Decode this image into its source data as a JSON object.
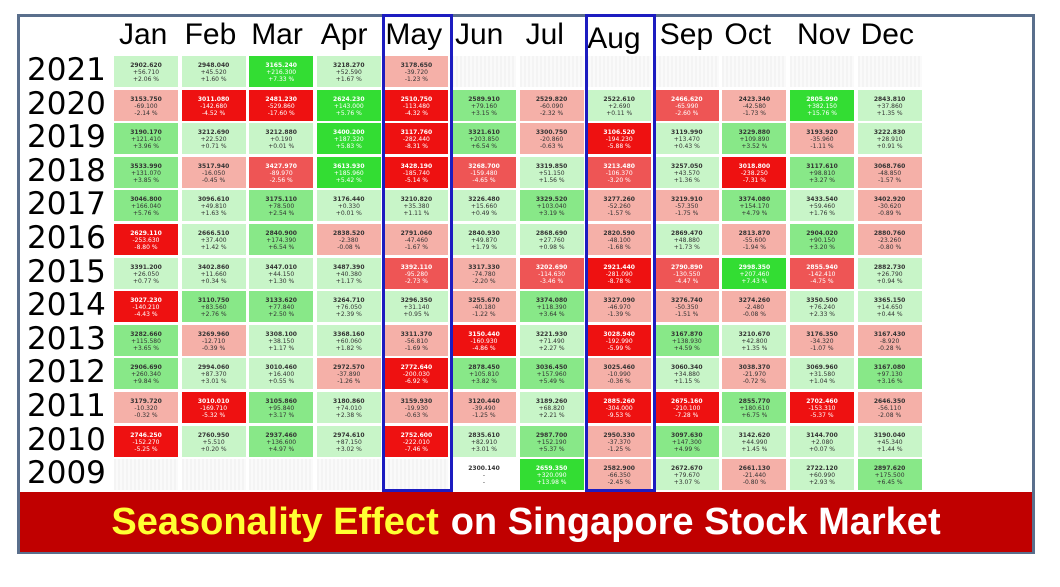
{
  "banner": {
    "highlight": "Seasonality Effect",
    "rest": "on Singapore Stock Market"
  },
  "colors": {
    "strong_up": "#33dd33",
    "up": "#88e888",
    "mild_up": "#c8f5c8",
    "mild_down": "#f5b0a8",
    "down": "#ee5555",
    "strong_down": "#ee1111",
    "highlight_box": "#1c1cc0",
    "banner_bg": "#c00000",
    "banner_accent": "#ffff33"
  },
  "chart_data": {
    "type": "heatmap",
    "title": "Seasonality Effect on Singapore Stock Market",
    "columns": [
      "Jan",
      "Feb",
      "Mar",
      "Apr",
      "May",
      "Jun",
      "Jul",
      "Aug",
      "Sep",
      "Oct",
      "Nov",
      "Dec"
    ],
    "rows": [
      "2021",
      "2020",
      "2019",
      "2018",
      "2017",
      "2016",
      "2015",
      "2014",
      "2013",
      "2012",
      "2011",
      "2010",
      "2009"
    ],
    "highlighted_columns": [
      "May",
      "Aug"
    ],
    "cells": [
      [
        {
          "v": "2902.620",
          "c": "+56.710",
          "p": "+2.06 %",
          "s": 1
        },
        {
          "v": "2948.040",
          "c": "+45.520",
          "p": "+1.60 %",
          "s": 1
        },
        {
          "v": "3165.240",
          "c": "+216.300",
          "p": "+7.33 %",
          "s": 3
        },
        {
          "v": "3218.270",
          "c": "+52.590",
          "p": "+1.67 %",
          "s": 1
        },
        {
          "v": "3178.650",
          "c": "-39.720",
          "p": "-1.23 %",
          "s": -1
        },
        null,
        null,
        null,
        null,
        null,
        null,
        null
      ],
      [
        {
          "v": "3153.750",
          "c": "-69.100",
          "p": "-2.14 %",
          "s": -1
        },
        {
          "v": "3011.080",
          "c": "-142.680",
          "p": "-4.52 %",
          "s": -3
        },
        {
          "v": "2481.230",
          "c": "-529.860",
          "p": "-17.60 %",
          "s": -3
        },
        {
          "v": "2624.230",
          "c": "+143.000",
          "p": "+5.76 %",
          "s": 3
        },
        {
          "v": "2510.750",
          "c": "-113.480",
          "p": "-4.32 %",
          "s": -3
        },
        {
          "v": "2589.910",
          "c": "+79.160",
          "p": "+3.15 %",
          "s": 2
        },
        {
          "v": "2529.820",
          "c": "-60.090",
          "p": "-2.32 %",
          "s": -1
        },
        {
          "v": "2522.610",
          "c": "+2.690",
          "p": "+0.11 %",
          "s": 1
        },
        {
          "v": "2466.620",
          "c": "-65.990",
          "p": "-2.60 %",
          "s": -2
        },
        {
          "v": "2423.340",
          "c": "-42.580",
          "p": "-1.73 %",
          "s": -1
        },
        {
          "v": "2805.990",
          "c": "+382.150",
          "p": "+15.76 %",
          "s": 3
        },
        {
          "v": "2843.810",
          "c": "+37.860",
          "p": "+1.35 %",
          "s": 1
        }
      ],
      [
        {
          "v": "3190.170",
          "c": "+121.410",
          "p": "+3.96 %",
          "s": 2
        },
        {
          "v": "3212.690",
          "c": "+22.520",
          "p": "+0.71 %",
          "s": 1
        },
        {
          "v": "3212.880",
          "c": "+0.190",
          "p": "+0.01 %",
          "s": 1
        },
        {
          "v": "3400.200",
          "c": "+187.320",
          "p": "+5.83 %",
          "s": 3
        },
        {
          "v": "3117.760",
          "c": "-282.440",
          "p": "-8.31 %",
          "s": -3
        },
        {
          "v": "3321.610",
          "c": "+203.850",
          "p": "+6.54 %",
          "s": 2
        },
        {
          "v": "3300.750",
          "c": "-20.860",
          "p": "-0.63 %",
          "s": -1
        },
        {
          "v": "3106.520",
          "c": "-194.230",
          "p": "-5.88 %",
          "s": -3
        },
        {
          "v": "3119.990",
          "c": "+13.470",
          "p": "+0.43 %",
          "s": 1
        },
        {
          "v": "3229.880",
          "c": "+109.890",
          "p": "+3.52 %",
          "s": 2
        },
        {
          "v": "3193.920",
          "c": "-35.960",
          "p": "-1.11 %",
          "s": -1
        },
        {
          "v": "3222.830",
          "c": "+28.910",
          "p": "+0.91 %",
          "s": 1
        }
      ],
      [
        {
          "v": "3533.990",
          "c": "+131.070",
          "p": "+3.85 %",
          "s": 2
        },
        {
          "v": "3517.940",
          "c": "-16.050",
          "p": "-0.45 %",
          "s": -1
        },
        {
          "v": "3427.970",
          "c": "-89.970",
          "p": "-2.56 %",
          "s": -2
        },
        {
          "v": "3613.930",
          "c": "+185.960",
          "p": "+5.42 %",
          "s": 3
        },
        {
          "v": "3428.190",
          "c": "-185.740",
          "p": "-5.14 %",
          "s": -3
        },
        {
          "v": "3268.700",
          "c": "-159.480",
          "p": "-4.65 %",
          "s": -2
        },
        {
          "v": "3319.850",
          "c": "+51.150",
          "p": "+1.56 %",
          "s": 1
        },
        {
          "v": "3213.480",
          "c": "-106.370",
          "p": "-3.20 %",
          "s": -2
        },
        {
          "v": "3257.050",
          "c": "+43.570",
          "p": "+1.36 %",
          "s": 1
        },
        {
          "v": "3018.800",
          "c": "-238.250",
          "p": "-7.31 %",
          "s": -3
        },
        {
          "v": "3117.610",
          "c": "+98.810",
          "p": "+3.27 %",
          "s": 2
        },
        {
          "v": "3068.760",
          "c": "-48.850",
          "p": "-1.57 %",
          "s": -1
        }
      ],
      [
        {
          "v": "3046.800",
          "c": "+166.040",
          "p": "+5.76 %",
          "s": 2
        },
        {
          "v": "3096.610",
          "c": "+49.810",
          "p": "+1.63 %",
          "s": 1
        },
        {
          "v": "3175.110",
          "c": "+78.500",
          "p": "+2.54 %",
          "s": 2
        },
        {
          "v": "3176.440",
          "c": "+0.330",
          "p": "+0.01 %",
          "s": 1
        },
        {
          "v": "3210.820",
          "c": "+35.380",
          "p": "+1.11 %",
          "s": 1
        },
        {
          "v": "3226.480",
          "c": "+15.660",
          "p": "+0.49 %",
          "s": 1
        },
        {
          "v": "3329.520",
          "c": "+103.040",
          "p": "+3.19 %",
          "s": 2
        },
        {
          "v": "3277.260",
          "c": "-52.260",
          "p": "-1.57 %",
          "s": -1
        },
        {
          "v": "3219.910",
          "c": "-57.350",
          "p": "-1.75 %",
          "s": -1
        },
        {
          "v": "3374.080",
          "c": "+154.170",
          "p": "+4.79 %",
          "s": 2
        },
        {
          "v": "3433.540",
          "c": "+59.460",
          "p": "+1.76 %",
          "s": 1
        },
        {
          "v": "3402.920",
          "c": "-30.620",
          "p": "-0.89 %",
          "s": -1
        }
      ],
      [
        {
          "v": "2629.110",
          "c": "-253.630",
          "p": "-8.80 %",
          "s": -3
        },
        {
          "v": "2666.510",
          "c": "+37.400",
          "p": "+1.42 %",
          "s": 1
        },
        {
          "v": "2840.900",
          "c": "+174.390",
          "p": "+6.54 %",
          "s": 2
        },
        {
          "v": "2838.520",
          "c": "-2.380",
          "p": "-0.08 %",
          "s": -1
        },
        {
          "v": "2791.060",
          "c": "-47.460",
          "p": "-1.67 %",
          "s": -1
        },
        {
          "v": "2840.930",
          "c": "+49.870",
          "p": "+1.79 %",
          "s": 1
        },
        {
          "v": "2868.690",
          "c": "+27.760",
          "p": "+0.98 %",
          "s": 1
        },
        {
          "v": "2820.590",
          "c": "-48.100",
          "p": "-1.68 %",
          "s": -1
        },
        {
          "v": "2869.470",
          "c": "+48.880",
          "p": "+1.73 %",
          "s": 1
        },
        {
          "v": "2813.870",
          "c": "-55.600",
          "p": "-1.94 %",
          "s": -1
        },
        {
          "v": "2904.020",
          "c": "+90.150",
          "p": "+3.20 %",
          "s": 2
        },
        {
          "v": "2880.760",
          "c": "-23.260",
          "p": "-0.80 %",
          "s": -1
        }
      ],
      [
        {
          "v": "3391.200",
          "c": "+26.050",
          "p": "+0.77 %",
          "s": 1
        },
        {
          "v": "3402.860",
          "c": "+11.660",
          "p": "+0.34 %",
          "s": 1
        },
        {
          "v": "3447.010",
          "c": "+44.150",
          "p": "+1.30 %",
          "s": 1
        },
        {
          "v": "3487.390",
          "c": "+40.380",
          "p": "+1.17 %",
          "s": 1
        },
        {
          "v": "3392.110",
          "c": "-95.280",
          "p": "-2.73 %",
          "s": -2
        },
        {
          "v": "3317.330",
          "c": "-74.780",
          "p": "-2.20 %",
          "s": -1
        },
        {
          "v": "3202.690",
          "c": "-114.630",
          "p": "-3.46 %",
          "s": -2
        },
        {
          "v": "2921.440",
          "c": "-281.090",
          "p": "-8.78 %",
          "s": -3
        },
        {
          "v": "2790.890",
          "c": "-130.550",
          "p": "-4.47 %",
          "s": -2
        },
        {
          "v": "2998.350",
          "c": "+207.460",
          "p": "+7.43 %",
          "s": 3
        },
        {
          "v": "2855.940",
          "c": "-142.410",
          "p": "-4.75 %",
          "s": -2
        },
        {
          "v": "2882.730",
          "c": "+26.790",
          "p": "+0.94 %",
          "s": 1
        }
      ],
      [
        {
          "v": "3027.230",
          "c": "-140.210",
          "p": "-4.43 %",
          "s": -3
        },
        {
          "v": "3110.750",
          "c": "+83.560",
          "p": "+2.76 %",
          "s": 2
        },
        {
          "v": "3133.620",
          "c": "+77.840",
          "p": "+2.50 %",
          "s": 2
        },
        {
          "v": "3264.710",
          "c": "+76.050",
          "p": "+2.39 %",
          "s": 1
        },
        {
          "v": "3296.350",
          "c": "+31.140",
          "p": "+0.95 %",
          "s": 1
        },
        {
          "v": "3255.670",
          "c": "-40.180",
          "p": "-1.22 %",
          "s": -1
        },
        {
          "v": "3374.080",
          "c": "+118.390",
          "p": "+3.64 %",
          "s": 2
        },
        {
          "v": "3327.090",
          "c": "-46.970",
          "p": "-1.39 %",
          "s": -1
        },
        {
          "v": "3276.740",
          "c": "-50.350",
          "p": "-1.51 %",
          "s": -1
        },
        {
          "v": "3274.260",
          "c": "-2.480",
          "p": "-0.08 %",
          "s": -1
        },
        {
          "v": "3350.500",
          "c": "+76.240",
          "p": "+2.33 %",
          "s": 1
        },
        {
          "v": "3365.150",
          "c": "+14.650",
          "p": "+0.44 %",
          "s": 1
        }
      ],
      [
        {
          "v": "3282.660",
          "c": "+115.580",
          "p": "+3.65 %",
          "s": 2
        },
        {
          "v": "3269.960",
          "c": "-12.710",
          "p": "-0.39 %",
          "s": -1
        },
        {
          "v": "3308.100",
          "c": "+38.150",
          "p": "+1.17 %",
          "s": 1
        },
        {
          "v": "3368.160",
          "c": "+60.060",
          "p": "+1.82 %",
          "s": 1
        },
        {
          "v": "3311.370",
          "c": "-56.810",
          "p": "-1.69 %",
          "s": -1
        },
        {
          "v": "3150.440",
          "c": "-160.930",
          "p": "-4.86 %",
          "s": -3
        },
        {
          "v": "3221.930",
          "c": "+71.490",
          "p": "+2.27 %",
          "s": 1
        },
        {
          "v": "3028.940",
          "c": "-192.990",
          "p": "-5.99 %",
          "s": -3
        },
        {
          "v": "3167.870",
          "c": "+138.930",
          "p": "+4.59 %",
          "s": 2
        },
        {
          "v": "3210.670",
          "c": "+42.800",
          "p": "+1.35 %",
          "s": 1
        },
        {
          "v": "3176.350",
          "c": "-34.320",
          "p": "-1.07 %",
          "s": -1
        },
        {
          "v": "3167.430",
          "c": "-8.920",
          "p": "-0.28 %",
          "s": -1
        }
      ],
      [
        {
          "v": "2906.690",
          "c": "+260.340",
          "p": "+9.84 %",
          "s": 2
        },
        {
          "v": "2994.060",
          "c": "+87.370",
          "p": "+3.01 %",
          "s": 1
        },
        {
          "v": "3010.460",
          "c": "+16.400",
          "p": "+0.55 %",
          "s": 1
        },
        {
          "v": "2972.570",
          "c": "-37.890",
          "p": "-1.26 %",
          "s": -1
        },
        {
          "v": "2772.640",
          "c": "-200.030",
          "p": "-6.92 %",
          "s": -3
        },
        {
          "v": "2878.450",
          "c": "+105.810",
          "p": "+3.82 %",
          "s": 2
        },
        {
          "v": "3036.450",
          "c": "+157.960",
          "p": "+5.49 %",
          "s": 2
        },
        {
          "v": "3025.460",
          "c": "-10.990",
          "p": "-0.36 %",
          "s": -1
        },
        {
          "v": "3060.340",
          "c": "+34.880",
          "p": "+1.15 %",
          "s": 1
        },
        {
          "v": "3038.370",
          "c": "-21.970",
          "p": "-0.72 %",
          "s": -1
        },
        {
          "v": "3069.960",
          "c": "+31.580",
          "p": "+1.04 %",
          "s": 1
        },
        {
          "v": "3167.080",
          "c": "+97.130",
          "p": "+3.16 %",
          "s": 2
        }
      ],
      [
        {
          "v": "3179.720",
          "c": "-10.320",
          "p": "-0.32 %",
          "s": -1
        },
        {
          "v": "3010.010",
          "c": "-169.710",
          "p": "-5.32 %",
          "s": -3
        },
        {
          "v": "3105.860",
          "c": "+95.840",
          "p": "+3.17 %",
          "s": 2
        },
        {
          "v": "3180.860",
          "c": "+74.010",
          "p": "+2.38 %",
          "s": 1
        },
        {
          "v": "3159.930",
          "c": "-19.930",
          "p": "-0.63 %",
          "s": -1
        },
        {
          "v": "3120.440",
          "c": "-39.490",
          "p": "-1.25 %",
          "s": -1
        },
        {
          "v": "3189.260",
          "c": "+68.820",
          "p": "+2.21 %",
          "s": 1
        },
        {
          "v": "2885.260",
          "c": "-304.000",
          "p": "-9.53 %",
          "s": -3
        },
        {
          "v": "2675.160",
          "c": "-210.100",
          "p": "-7.28 %",
          "s": -3
        },
        {
          "v": "2855.770",
          "c": "+180.610",
          "p": "+6.75 %",
          "s": 2
        },
        {
          "v": "2702.460",
          "c": "-153.310",
          "p": "-5.37 %",
          "s": -3
        },
        {
          "v": "2646.350",
          "c": "-56.110",
          "p": "-2.08 %",
          "s": -1
        }
      ],
      [
        {
          "v": "2746.250",
          "c": "-152.270",
          "p": "-5.25 %",
          "s": -3
        },
        {
          "v": "2760.950",
          "c": "+5.510",
          "p": "+0.20 %",
          "s": 1
        },
        {
          "v": "2937.460",
          "c": "+136.600",
          "p": "+4.97 %",
          "s": 2
        },
        {
          "v": "2974.610",
          "c": "+87.150",
          "p": "+3.02 %",
          "s": 1
        },
        {
          "v": "2752.600",
          "c": "-222.010",
          "p": "-7.46 %",
          "s": -3
        },
        {
          "v": "2835.610",
          "c": "+82.910",
          "p": "+3.01 %",
          "s": 1
        },
        {
          "v": "2987.700",
          "c": "+152.190",
          "p": "+5.37 %",
          "s": 2
        },
        {
          "v": "2950.330",
          "c": "-37.370",
          "p": "-1.25 %",
          "s": -1
        },
        {
          "v": "3097.630",
          "c": "+147.300",
          "p": "+4.99 %",
          "s": 2
        },
        {
          "v": "3142.620",
          "c": "+44.990",
          "p": "+1.45 %",
          "s": 1
        },
        {
          "v": "3144.700",
          "c": "+2.080",
          "p": "+0.07 %",
          "s": 1
        },
        {
          "v": "3190.040",
          "c": "+45.340",
          "p": "+1.44 %",
          "s": 1
        }
      ],
      [
        null,
        null,
        null,
        null,
        null,
        {
          "v": "2300.140",
          "c": "-",
          "p": "-",
          "s": 0
        },
        {
          "v": "2659.350",
          "c": "+320.090",
          "p": "+13.98 %",
          "s": 3
        },
        {
          "v": "2582.900",
          "c": "-66.350",
          "p": "-2.45 %",
          "s": -1
        },
        {
          "v": "2672.670",
          "c": "+79.670",
          "p": "+3.07 %",
          "s": 1
        },
        {
          "v": "2661.130",
          "c": "-21.440",
          "p": "-0.80 %",
          "s": -1
        },
        {
          "v": "2722.120",
          "c": "+60.990",
          "p": "+2.93 %",
          "s": 1
        },
        {
          "v": "2897.620",
          "c": "+175.500",
          "p": "+6.45 %",
          "s": 2
        }
      ]
    ]
  }
}
